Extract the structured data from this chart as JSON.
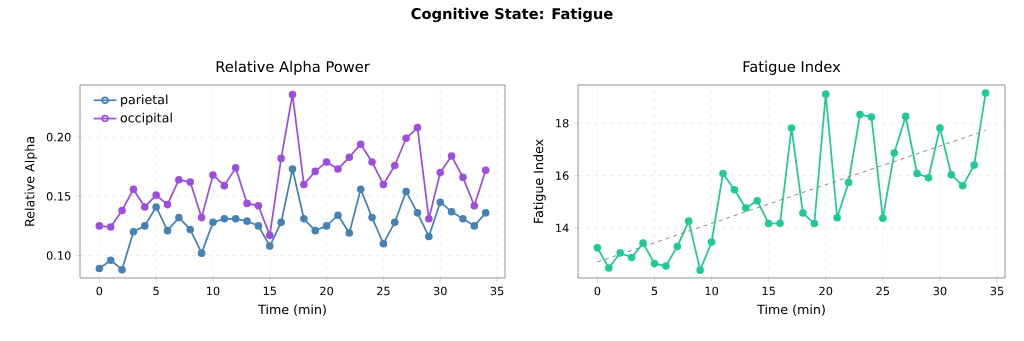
{
  "chart_data": [
    {
      "type": "line",
      "title": "Relative Alpha Power",
      "xlabel": "Time (min)",
      "ylabel": "Relative Alpha",
      "annotations": [
        "Cognitive State: Fatigue"
      ],
      "x": [
        0,
        1,
        2,
        3,
        4,
        5,
        6,
        7,
        8,
        9,
        10,
        11,
        12,
        13,
        14,
        15,
        16,
        17,
        18,
        19,
        20,
        21,
        22,
        23,
        24,
        25,
        26,
        27,
        28,
        29,
        30,
        31,
        32,
        33,
        34
      ],
      "series": [
        {
          "name": "parietal",
          "color": "#4682b4",
          "values": [
            0.089,
            0.096,
            0.088,
            0.12,
            0.125,
            0.141,
            0.121,
            0.132,
            0.122,
            0.102,
            0.128,
            0.131,
            0.131,
            0.129,
            0.125,
            0.108,
            0.128,
            0.173,
            0.131,
            0.121,
            0.125,
            0.134,
            0.119,
            0.156,
            0.132,
            0.11,
            0.128,
            0.154,
            0.136,
            0.116,
            0.145,
            0.137,
            0.131,
            0.125,
            0.136
          ]
        },
        {
          "name": "occipital",
          "color": "#9d4edd",
          "values": [
            0.125,
            0.124,
            0.138,
            0.156,
            0.141,
            0.151,
            0.143,
            0.164,
            0.162,
            0.132,
            0.168,
            0.159,
            0.174,
            0.144,
            0.142,
            0.117,
            0.182,
            0.236,
            0.16,
            0.171,
            0.179,
            0.173,
            0.183,
            0.194,
            0.179,
            0.16,
            0.176,
            0.199,
            0.208,
            0.131,
            0.17,
            0.184,
            0.166,
            0.142,
            0.172
          ]
        }
      ],
      "xlim": [
        -1.7,
        35.7
      ],
      "ylim": [
        0.081,
        0.244
      ],
      "xticks": [
        0,
        5,
        10,
        15,
        20,
        25,
        30,
        35
      ],
      "yticks": [
        {
          "value": 0.1,
          "label": "0.10"
        },
        {
          "value": 0.15,
          "label": "0.15"
        },
        {
          "value": 0.2,
          "label": "0.20"
        }
      ],
      "grid": true,
      "legend": "top left",
      "marker": "circle",
      "line_style": "solid"
    },
    {
      "type": "line",
      "title": "Fatigue Index",
      "xlabel": "Time (min)",
      "ylabel": "Fatigue Index",
      "x": [
        0,
        1,
        2,
        3,
        4,
        5,
        6,
        7,
        8,
        9,
        10,
        11,
        12,
        13,
        14,
        15,
        16,
        17,
        18,
        19,
        20,
        21,
        22,
        23,
        24,
        25,
        26,
        27,
        28,
        29,
        30,
        31,
        32,
        33,
        34
      ],
      "series": [
        {
          "color": "#20c997",
          "values": [
            13.24,
            12.47,
            13.05,
            12.87,
            13.42,
            12.64,
            12.55,
            13.29,
            14.26,
            12.39,
            13.46,
            16.08,
            15.46,
            14.76,
            15.04,
            14.17,
            14.18,
            17.82,
            14.57,
            14.17,
            19.11,
            14.39,
            15.74,
            18.33,
            18.24,
            14.37,
            16.86,
            18.26,
            16.08,
            15.92,
            17.82,
            16.03,
            15.61,
            16.4,
            19.15
          ]
        },
        {
          "type": "line",
          "color": "#808080",
          "x": [
            0,
            34
          ],
          "values": [
            12.7,
            17.72
          ],
          "line_style": "dashed",
          "marker": "none"
        }
      ],
      "xlim": [
        -1.7,
        35.7
      ],
      "ylim": [
        12.09,
        19.46
      ],
      "xticks": [
        0,
        5,
        10,
        15,
        20,
        25,
        30,
        35
      ],
      "yticks": [
        14,
        16,
        18
      ],
      "grid": true,
      "marker": "circle",
      "line_style": "solid"
    }
  ]
}
